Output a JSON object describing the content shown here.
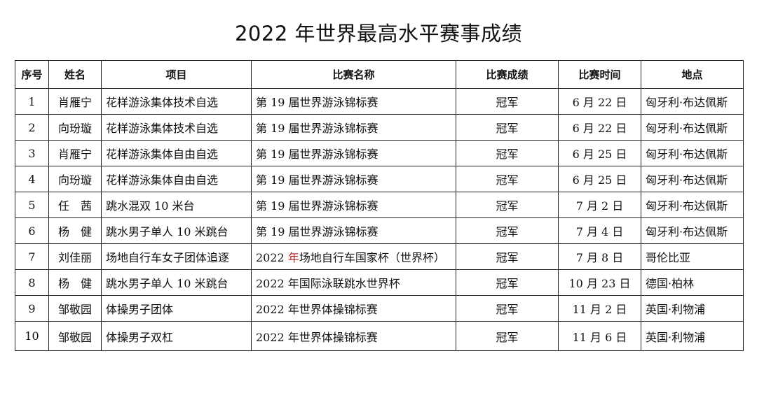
{
  "title": "2022 年世界最高水平赛事成绩",
  "table": {
    "headers": [
      "序号",
      "姓名",
      "项目",
      "比赛名称",
      "比赛成绩",
      "比赛时间",
      "地点"
    ],
    "rows": [
      {
        "no": "1",
        "name": "肖雁宁",
        "event": "花样游泳集体技术自选",
        "competition": "第 19 届世界游泳锦标赛",
        "result": "冠军",
        "date": "6 月 22 日",
        "location": "匈牙利·布达佩斯"
      },
      {
        "no": "2",
        "name": "向玢璇",
        "event": "花样游泳集体技术自选",
        "competition": "第 19 届世界游泳锦标赛",
        "result": "冠军",
        "date": "6 月 22 日",
        "location": "匈牙利·布达佩斯"
      },
      {
        "no": "3",
        "name": "肖雁宁",
        "event": "花样游泳集体自由自选",
        "competition": "第 19 届世界游泳锦标赛",
        "result": "冠军",
        "date": "6 月 25 日",
        "location": "匈牙利·布达佩斯"
      },
      {
        "no": "4",
        "name": "向玢璇",
        "event": "花样游泳集体自由自选",
        "competition": "第 19 届世界游泳锦标赛",
        "result": "冠军",
        "date": "6 月 25 日",
        "location": "匈牙利·布达佩斯"
      },
      {
        "no": "5",
        "name": "任　茜",
        "event": "跳水混双 10 米台",
        "competition": "第 19 届世界游泳锦标赛",
        "result": "冠军",
        "date": "7 月 2 日",
        "location": "匈牙利·布达佩斯"
      },
      {
        "no": "6",
        "name": "杨　健",
        "event": "跳水男子单人 10 米跳台",
        "competition": "第 19 届世界游泳锦标赛",
        "result": "冠军",
        "date": "7 月 4 日",
        "location": "匈牙利·布达佩斯"
      },
      {
        "no": "7",
        "name": "刘佳丽",
        "event": "场地自行车女子团体追逐",
        "competition_prefix": "2022 ",
        "competition_accent": "年",
        "competition_suffix": "场地自行车国家杯（世界杯）",
        "result": "冠军",
        "date": "7 月 8 日",
        "location": "哥伦比亚"
      },
      {
        "no": "8",
        "name": "杨　健",
        "event": "跳水男子单人 10 米跳台",
        "competition": "2022 年国际泳联跳水世界杯",
        "result": "冠军",
        "date": "10 月 23 日",
        "location": "德国·柏林"
      },
      {
        "no": "9",
        "name": "邹敬园",
        "event": "体操男子团体",
        "competition": "2022 年世界体操锦标赛",
        "result": "冠军",
        "date": "11 月 2 日",
        "location": "英国·利物浦"
      },
      {
        "no": "10",
        "name": "邹敬园",
        "event": "体操男子双杠",
        "competition": "2022 年世界体操锦标赛",
        "result": "冠军",
        "date": "11 月 6 日",
        "location": "英国·利物浦"
      }
    ]
  },
  "colors": {
    "accent": "#b02020",
    "border": "#222222"
  }
}
